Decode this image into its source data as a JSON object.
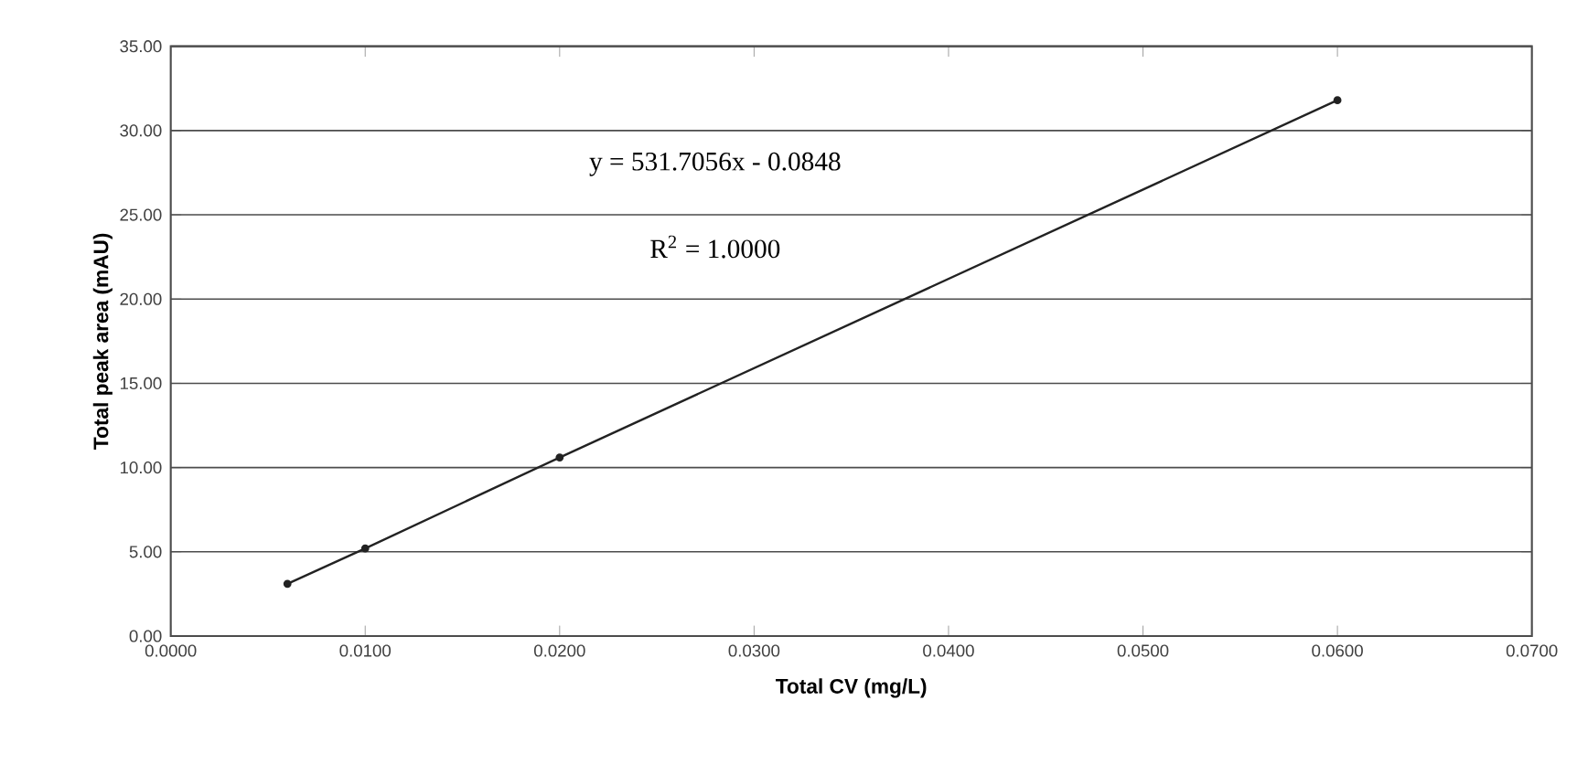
{
  "chart_data": {
    "type": "line",
    "xlabel": "Total CV (mg/L)",
    "ylabel": "Total peak area (mAU)",
    "x": [
      0.006,
      0.01,
      0.02,
      0.06
    ],
    "series": [
      {
        "color": "#222222",
        "values": [
          3.1,
          5.2,
          10.6,
          31.8
        ]
      }
    ],
    "marker": "circle",
    "line_style": "solid",
    "grid": "y",
    "xlim": [
      0,
      0.07
    ],
    "ylim": [
      0,
      35
    ],
    "xticks": [
      {
        "value": 0,
        "label": "0.0000"
      },
      {
        "value": 0.01,
        "label": "0.0100"
      },
      {
        "value": 0.02,
        "label": "0.0200"
      },
      {
        "value": 0.03,
        "label": "0.0300"
      },
      {
        "value": 0.04,
        "label": "0.0400"
      },
      {
        "value": 0.05,
        "label": "0.0500"
      },
      {
        "value": 0.06,
        "label": "0.0600"
      },
      {
        "value": 0.07,
        "label": "0.0700"
      }
    ],
    "yticks": [
      {
        "value": 0,
        "label": "0.00"
      },
      {
        "value": 5,
        "label": "5.00"
      },
      {
        "value": 10,
        "label": "10.00"
      },
      {
        "value": 15,
        "label": "15.00"
      },
      {
        "value": 20,
        "label": "20.00"
      },
      {
        "value": 25,
        "label": "25.00"
      },
      {
        "value": 30,
        "label": "30.00"
      },
      {
        "value": 35,
        "label": "35.00"
      }
    ],
    "annotations": [
      "y = 531.7056x - 0.0848",
      "R$^{2}$ = 1.0000"
    ]
  }
}
